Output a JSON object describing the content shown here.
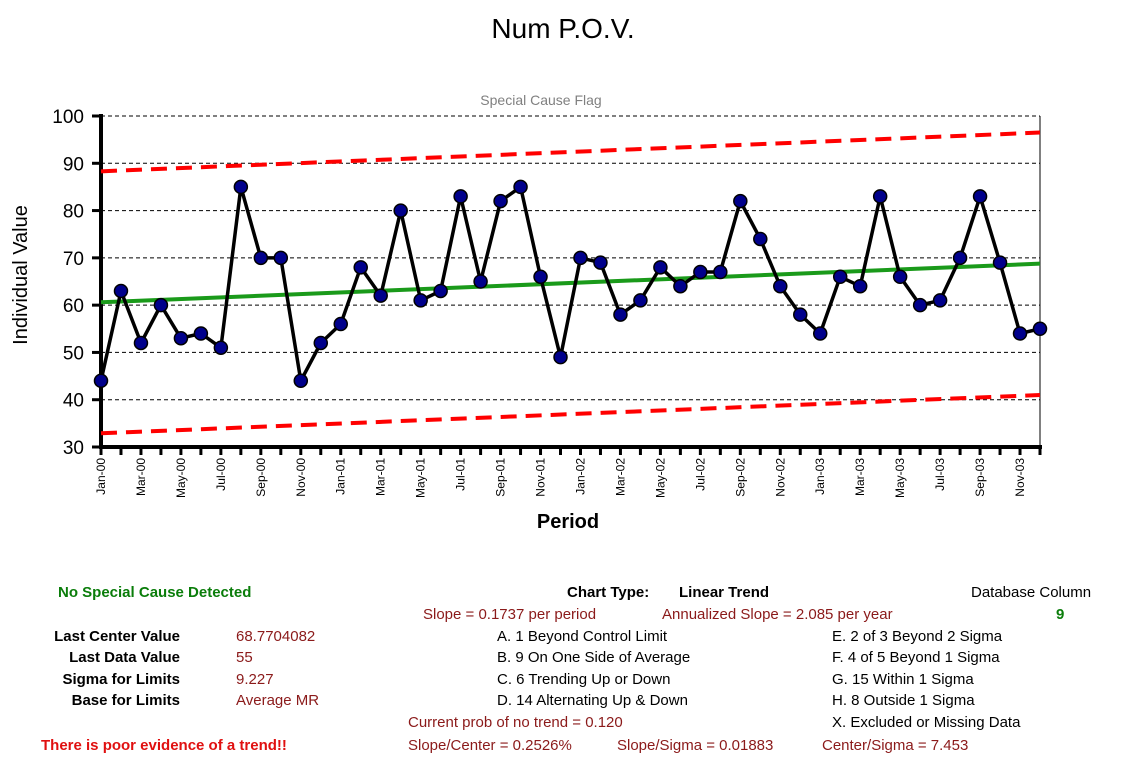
{
  "chart_data": {
    "type": "line",
    "title": "Num P.O.V.",
    "subtitle": "Special Cause Flag",
    "xlabel": "Period",
    "ylabel": "Individual Value",
    "ylim": [
      30,
      100
    ],
    "yticks": [
      30,
      40,
      50,
      60,
      70,
      80,
      90,
      100
    ],
    "grid": true,
    "x": [
      "Jan-00",
      "Feb-00",
      "Mar-00",
      "Apr-00",
      "May-00",
      "Jun-00",
      "Jul-00",
      "Aug-00",
      "Sep-00",
      "Oct-00",
      "Nov-00",
      "Dec-00",
      "Jan-01",
      "Feb-01",
      "Mar-01",
      "Apr-01",
      "May-01",
      "Jun-01",
      "Jul-01",
      "Aug-01",
      "Sep-01",
      "Oct-01",
      "Nov-01",
      "Dec-01",
      "Jan-02",
      "Feb-02",
      "Mar-02",
      "Apr-02",
      "May-02",
      "Jun-02",
      "Jul-02",
      "Aug-02",
      "Sep-02",
      "Oct-02",
      "Nov-02",
      "Dec-02",
      "Jan-03",
      "Feb-03",
      "Mar-03",
      "Apr-03",
      "May-03",
      "Jun-03",
      "Jul-03",
      "Aug-03",
      "Sep-03",
      "Oct-03",
      "Nov-03",
      "Dec-03"
    ],
    "xtick_labels": [
      "Jan-00",
      "Mar-00",
      "May-00",
      "Jul-00",
      "Sep-00",
      "Nov-00",
      "Jan-01",
      "Mar-01",
      "May-01",
      "Jul-01",
      "Sep-01",
      "Nov-01",
      "Jan-02",
      "Mar-02",
      "May-02",
      "Jul-02",
      "Sep-02",
      "Nov-02",
      "Jan-03",
      "Mar-03",
      "May-03",
      "Jul-03",
      "Sep-03",
      "Nov-03"
    ],
    "series": [
      {
        "values": [
          44,
          63,
          52,
          60,
          53,
          54,
          51,
          85,
          70,
          70,
          44,
          52,
          56,
          68,
          62,
          80,
          61,
          63,
          83,
          65,
          82,
          85,
          66,
          49,
          70,
          69,
          58,
          61,
          68,
          64,
          67,
          67,
          82,
          74,
          64,
          58,
          54,
          66,
          64,
          83,
          66,
          60,
          61,
          70,
          83,
          69,
          54,
          55
        ],
        "color": "#000000",
        "marker_color": "#00008b"
      },
      {
        "values_start_end": [
          60.6,
          68.77
        ],
        "color": "#1a9a1a"
      },
      {
        "values_start_end": [
          32.9,
          41.0
        ],
        "color": "#ff0000",
        "dashed": true
      },
      {
        "values_start_end": [
          88.3,
          96.5
        ],
        "color": "#ff0000",
        "dashed": true
      }
    ]
  },
  "stats": {
    "flag": "No Special Cause Detected",
    "last_center_label": "Last Center Value",
    "last_center_value": "68.7704082",
    "last_data_label": "Last Data Value",
    "last_data_value": "55",
    "sigma_label": "Sigma for Limits",
    "sigma_value": "9.227",
    "base_label": "Base for Limits",
    "base_value": "Average MR",
    "trend_warning": "There is poor evidence of a trend!!"
  },
  "info": {
    "chart_type_label": "Chart Type:",
    "chart_type_value": "Linear Trend",
    "slope": "Slope = 0.1737 per period",
    "annualized_slope": "Annualized Slope = 2.085 per year",
    "rule_a": "A. 1 Beyond Control Limit",
    "rule_b": "B. 9 On One Side of Average",
    "rule_c": "C. 6 Trending Up or Down",
    "rule_d": "D. 14 Alternating  Up & Down",
    "prob": "Current prob of no trend = 0.120",
    "slope_center": "Slope/Center = 0.2526%",
    "slope_sigma": "Slope/Sigma = 0.01883",
    "center_sigma": "Center/Sigma = 7.453"
  },
  "rules": {
    "database_column_label": "Database Column",
    "database_column_value": "9",
    "rule_e": "E.  2 of 3 Beyond 2 Sigma",
    "rule_f": "F.  4 of 5 Beyond 1 Sigma",
    "rule_g": "G.  15 Within 1 Sigma",
    "rule_h": "H.  8 Outside 1 Sigma",
    "rule_x": "X.  Excluded or Missing Data"
  }
}
